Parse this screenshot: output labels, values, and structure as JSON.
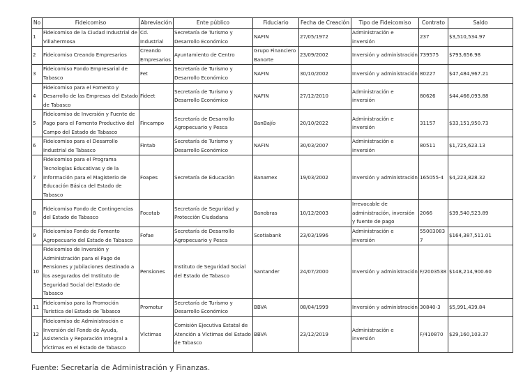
{
  "table": {
    "header": [
      "No",
      "Fideicomiso",
      "Abreviación",
      "Ente público",
      "Fiduciario",
      "Fecha de Creación",
      "Tipo de Fideicomiso",
      "Contrato",
      "Saldo"
    ],
    "rows": [
      [
        "1",
        "Fideicomiso de la Ciudad Industrial de Villahermosa",
        "Cd. Industrial",
        "Secretaría de Turismo y Desarrollo Económico",
        "NAFIN",
        "27/05/1972",
        "Administración e inversión",
        "237",
        "$3,510,534.97"
      ],
      [
        "2",
        "Fideicomiso Creando Empresarios",
        "Creando Empresarios",
        "Ayuntamiento de Centro",
        "Grupo Financiero Banorte",
        "23/09/2002",
        "Inversión y administración",
        "739575",
        "$793,656.98"
      ],
      [
        "3",
        "Fideicomiso Fondo Empresarial de Tabasco",
        "Fet",
        "Secretaría de Turismo y Desarrollo Económico",
        "NAFIN",
        "30/10/2002",
        "Inversión y administración",
        "80227",
        "$47,484,967.21"
      ],
      [
        "4",
        "Fideicomiso para el Fomento y Desarrollo de las Empresas del Estado de Tabasco",
        "Fideet",
        "Secretaría de Turismo y Desarrollo Económico",
        "NAFIN",
        "27/12/2010",
        "Administración e inversión",
        "80626",
        "$44,466,093.88"
      ],
      [
        "5",
        "Fideicomiso de Inversión y Fuente de Pago para el Fomento Productivo del Campo del Estado de Tabasco",
        "Fincampo",
        "Secretaría de Desarrollo Agropecuario y Pesca",
        "BanBajío",
        "20/10/2022",
        "Administración e inversión",
        "31157",
        "$33,151,950.73"
      ],
      [
        "6",
        "Fideicomiso para el Desarrollo Industrial de Tabasco",
        "Fintab",
        "Secretaría de Turismo y Desarrollo Económico",
        "NAFIN",
        "30/03/2007",
        "Administración e inversión",
        "80511",
        "$1,725,623.13"
      ],
      [
        "7",
        "Fideicomiso para el Programa Tecnologías Educativas y de la Información para el Magisterio de Educación Básica del Estado de Tabasco",
        "Foapes",
        "Secretaría de Educación",
        "Banamex",
        "19/03/2002",
        "Inversión y administración",
        "165055-4",
        "$4,223,828.32"
      ],
      [
        "8",
        "Fideicomiso Fondo de Contingencias del Estado de Tabasco",
        "Focotab",
        "Secretaría de Seguridad y Protección Ciudadana",
        "Banobras",
        "10/12/2003",
        "Irrevocable de administración, inversión y fuente de pago",
        "2066",
        "$39,540,523.89"
      ],
      [
        "9",
        "Fideicomiso Fondo de Fomento Agropecuario del Estado de Tabasco",
        "Fofae",
        "Secretaría de Desarrollo Agropecuario y Pesca",
        "Scotiabank",
        "23/03/1996",
        "Administración e inversión",
        "550030837",
        "$164,387,511.01"
      ],
      [
        "10",
        "Fideicomiso de Inversión y Administración para el Pago de Pensiones y Jubilaciones destinado a los asegurados del Instituto de Seguridad Social del Estado de Tabasco",
        "Pensiones",
        "Instituto de Seguridad Social del Estado de Tabasco",
        "Santander",
        "24/07/2000",
        "Inversión y administración",
        "F/2003538",
        "$148,214,900.60"
      ],
      [
        "11",
        "Fideicomiso para la Promoción Turística del Estado de Tabasco",
        "Promotur",
        "Secretaría de Turismo y Desarrollo Económico",
        "BBVA",
        "08/04/1999",
        "Inversión y administración",
        "30840-3",
        "$5,991,439.84"
      ],
      [
        "12",
        "Fideicomiso de Administración e Inversión del Fondo de Ayuda, Asistencia y Reparación Integral a Víctimas en el Estado de Tabasco",
        "Víctimas",
        "Comisión Ejecutiva Estatal de Atención a Víctimas del Estado de Tabasco",
        "BBVA",
        "23/12/2019",
        "Administración e inversión",
        "F/410870",
        "$29,160,103.37"
      ]
    ],
    "source": "Fuente: Secretaría de Administración y Finanzas."
  }
}
